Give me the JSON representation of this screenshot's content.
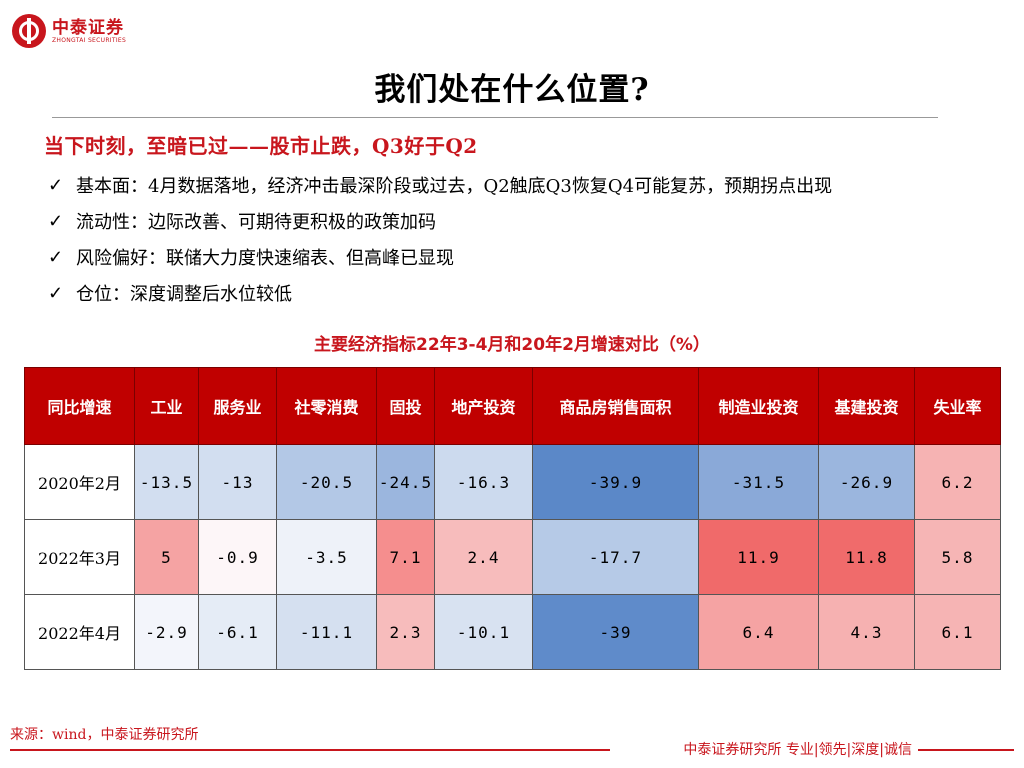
{
  "brand": {
    "name_cn": "中泰证券",
    "name_en": "ZHONGTAI SECURITIES"
  },
  "title": "我们处在什么位置?",
  "headline": "当下时刻，至暗已过——股市止跌，Q3好于Q2",
  "bullets": [
    {
      "check": "✓",
      "text": "基本面：4月数据落地，经济冲击最深阶段或过去，Q2触底Q3恢复Q4可能复苏，预期拐点出现"
    },
    {
      "check": "✓",
      "text": "流动性：边际改善、可期待更积极的政策加码"
    },
    {
      "check": "✓",
      "text": "风险偏好：联储大力度快速缩表、但高峰已显现"
    },
    {
      "check": "✓",
      "text": "仓位：深度调整后水位较低"
    }
  ],
  "table": {
    "caption": "主要经济指标22年3-4月和20年2月增速对比（%）",
    "headers": [
      "同比增速",
      "工业",
      "服务业",
      "社零消费",
      "固投",
      "地产投资",
      "商品房销售面积",
      "制造业投资",
      "基建投资",
      "失业率"
    ],
    "rows": [
      {
        "label": "2020年2月",
        "values": [
          "-13.5",
          "-13",
          "-20.5",
          "-24.5",
          "-16.3",
          "-39.9",
          "-31.5",
          "-26.9",
          "6.2"
        ],
        "colors": [
          "#d2def0",
          "#d2def0",
          "#b3c8e6",
          "#9bb6de",
          "#ccdaee",
          "#5b88c8",
          "#8aa9d8",
          "#9bb6de",
          "#f6b3b3"
        ]
      },
      {
        "label": "2022年3月",
        "values": [
          "5",
          "-0.9",
          "-3.5",
          "7.1",
          "2.4",
          "-17.7",
          "11.9",
          "11.8",
          "5.8"
        ],
        "colors": [
          "#f5a3a3",
          "#fdf6f8",
          "#eef2f9",
          "#f58e8e",
          "#f7bcbc",
          "#b6cae7",
          "#f06a6a",
          "#f06b6b",
          "#f6b5b5"
        ]
      },
      {
        "label": "2022年4月",
        "values": [
          "-2.9",
          "-6.1",
          "-11.1",
          "2.3",
          "-10.1",
          "-39",
          "6.4",
          "4.3",
          "6.1"
        ],
        "colors": [
          "#f3f5fb",
          "#e5ecf6",
          "#d5e0f0",
          "#f7bcbc",
          "#d8e2f1",
          "#5f8bca",
          "#f5a3a3",
          "#f6b1b1",
          "#f6b4b4"
        ]
      }
    ]
  },
  "source": "来源：wind，中泰证券研究所",
  "footer": "中泰证券研究所 专业|领先|深度|诚信"
}
